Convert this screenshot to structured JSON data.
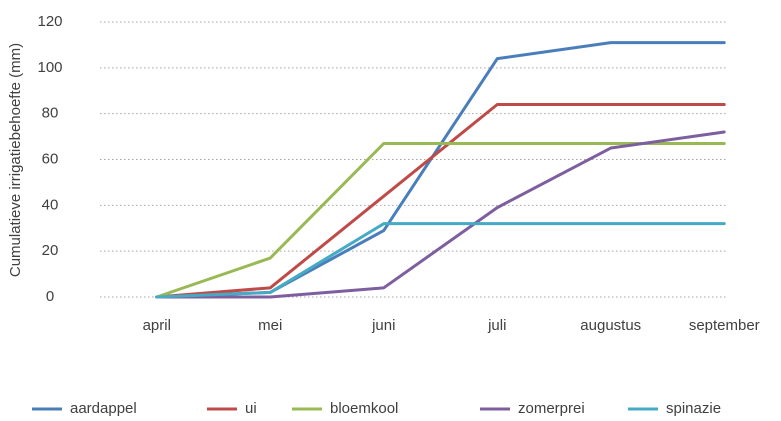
{
  "chart_data": {
    "type": "line",
    "y_label": "Cumulatieve irrigatiebehoefte (mm)",
    "categories": [
      "april",
      "mei",
      "juni",
      "juli",
      "augustus",
      "september"
    ],
    "series": [
      {
        "name": "aardappel",
        "color": "#4a7ebb",
        "values": [
          0,
          2,
          29,
          104,
          111,
          111
        ]
      },
      {
        "name": "ui",
        "color": "#be4b48",
        "values": [
          0,
          4,
          44,
          84,
          84,
          84
        ]
      },
      {
        "name": "bloemkool",
        "color": "#98b954",
        "values": [
          0,
          17,
          67,
          67,
          67,
          67
        ]
      },
      {
        "name": "zomerprei",
        "color": "#7d5fa0",
        "values": [
          0,
          0,
          4,
          39,
          65,
          72
        ]
      },
      {
        "name": "spinazie",
        "color": "#46aac5",
        "values": [
          0,
          2,
          32,
          32,
          32,
          32
        ]
      }
    ],
    "ylim": [
      0,
      120
    ],
    "yticks": [
      0,
      20,
      40,
      60,
      80,
      100,
      120
    ],
    "grid": true,
    "legend": "bottom"
  }
}
